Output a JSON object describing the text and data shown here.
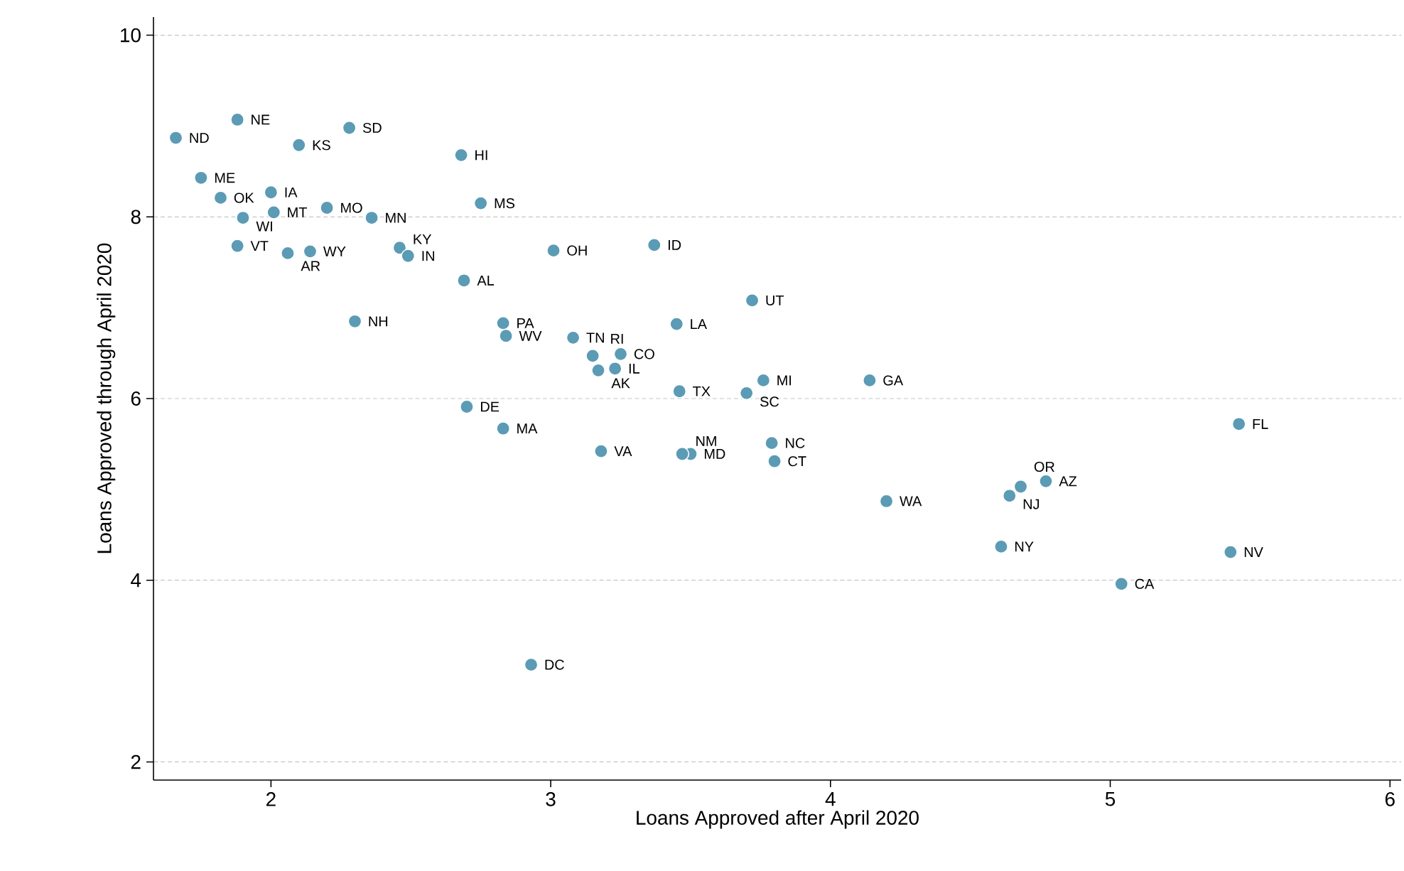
{
  "chart_data": {
    "type": "scatter",
    "xlabel": "Loans Approved after April 2020",
    "ylabel": "Loans Approved through April 2020",
    "xlim": [
      1.58,
      6.04
    ],
    "ylim": [
      1.8,
      10.2
    ],
    "xticks": [
      2,
      3,
      4,
      5,
      6
    ],
    "yticks": [
      2,
      4,
      6,
      8,
      10
    ],
    "grid": "y",
    "marker": "circle",
    "series": [
      {
        "color": "#5b9bb5",
        "x": [
          1.66,
          1.88,
          2.1,
          2.28,
          2.68,
          1.75,
          1.82,
          2.0,
          2.01,
          1.9,
          2.2,
          2.36,
          2.75,
          1.88,
          2.06,
          2.14,
          2.46,
          2.49,
          3.01,
          3.37,
          2.69,
          3.72,
          2.3,
          2.83,
          2.84,
          3.45,
          3.08,
          3.15,
          3.25,
          3.17,
          3.23,
          3.46,
          3.76,
          3.7,
          4.14,
          2.7,
          2.83,
          3.18,
          3.5,
          3.47,
          3.79,
          3.8,
          4.2,
          4.64,
          4.68,
          4.77,
          5.46,
          4.61,
          5.43,
          5.04,
          2.93
        ],
        "values": [
          8.87,
          9.07,
          8.79,
          8.98,
          8.68,
          8.43,
          8.21,
          8.27,
          8.05,
          7.99,
          8.1,
          7.99,
          8.15,
          7.68,
          7.6,
          7.62,
          7.66,
          7.57,
          7.63,
          7.69,
          7.3,
          7.08,
          6.85,
          6.83,
          6.69,
          6.82,
          6.67,
          6.47,
          6.49,
          6.31,
          6.33,
          6.08,
          6.2,
          6.06,
          6.2,
          5.91,
          5.67,
          5.42,
          5.39,
          5.39,
          5.51,
          5.31,
          4.87,
          4.93,
          5.03,
          5.09,
          5.72,
          4.37,
          4.31,
          3.96,
          3.07
        ]
      }
    ],
    "annotations": [
      {
        "text": "ND",
        "x": 1.66,
        "y": 8.87
      },
      {
        "text": "NE",
        "x": 1.88,
        "y": 9.07
      },
      {
        "text": "KS",
        "x": 2.1,
        "y": 8.79
      },
      {
        "text": "SD",
        "x": 2.28,
        "y": 8.98
      },
      {
        "text": "HI",
        "x": 2.68,
        "y": 8.68
      },
      {
        "text": "ME",
        "x": 1.75,
        "y": 8.43
      },
      {
        "text": "OK",
        "x": 1.82,
        "y": 8.21
      },
      {
        "text": "IA",
        "x": 2.0,
        "y": 8.27
      },
      {
        "text": "MT",
        "x": 2.01,
        "y": 8.05
      },
      {
        "text": "WI",
        "x": 1.9,
        "y": 7.99
      },
      {
        "text": "MO",
        "x": 2.2,
        "y": 8.1
      },
      {
        "text": "MN",
        "x": 2.36,
        "y": 7.99
      },
      {
        "text": "MS",
        "x": 2.75,
        "y": 8.15
      },
      {
        "text": "VT",
        "x": 1.88,
        "y": 7.68
      },
      {
        "text": "AR",
        "x": 2.06,
        "y": 7.6
      },
      {
        "text": "WY",
        "x": 2.14,
        "y": 7.62
      },
      {
        "text": "KY",
        "x": 2.46,
        "y": 7.66
      },
      {
        "text": "IN",
        "x": 2.49,
        "y": 7.57
      },
      {
        "text": "OH",
        "x": 3.01,
        "y": 7.63
      },
      {
        "text": "ID",
        "x": 3.37,
        "y": 7.69
      },
      {
        "text": "AL",
        "x": 2.69,
        "y": 7.3
      },
      {
        "text": "UT",
        "x": 3.72,
        "y": 7.08
      },
      {
        "text": "NH",
        "x": 2.3,
        "y": 6.85
      },
      {
        "text": "PA",
        "x": 2.83,
        "y": 6.83
      },
      {
        "text": "WV",
        "x": 2.84,
        "y": 6.69
      },
      {
        "text": "LA",
        "x": 3.45,
        "y": 6.82
      },
      {
        "text": "TN",
        "x": 3.08,
        "y": 6.67
      },
      {
        "text": "RI",
        "x": 3.15,
        "y": 6.47
      },
      {
        "text": "CO",
        "x": 3.25,
        "y": 6.49
      },
      {
        "text": "AK",
        "x": 3.17,
        "y": 6.31
      },
      {
        "text": "IL",
        "x": 3.23,
        "y": 6.33
      },
      {
        "text": "TX",
        "x": 3.46,
        "y": 6.08
      },
      {
        "text": "MI",
        "x": 3.76,
        "y": 6.2
      },
      {
        "text": "SC",
        "x": 3.7,
        "y": 6.06
      },
      {
        "text": "GA",
        "x": 4.14,
        "y": 6.2
      },
      {
        "text": "DE",
        "x": 2.7,
        "y": 5.91
      },
      {
        "text": "MA",
        "x": 2.83,
        "y": 5.67
      },
      {
        "text": "VA",
        "x": 3.18,
        "y": 5.42
      },
      {
        "text": "MD",
        "x": 3.5,
        "y": 5.39
      },
      {
        "text": "NM",
        "x": 3.47,
        "y": 5.39
      },
      {
        "text": "NC",
        "x": 3.79,
        "y": 5.51
      },
      {
        "text": "CT",
        "x": 3.8,
        "y": 5.31
      },
      {
        "text": "WA",
        "x": 4.2,
        "y": 4.87
      },
      {
        "text": "NJ",
        "x": 4.64,
        "y": 4.93
      },
      {
        "text": "OR",
        "x": 4.68,
        "y": 5.03
      },
      {
        "text": "AZ",
        "x": 4.77,
        "y": 5.09
      },
      {
        "text": "FL",
        "x": 5.46,
        "y": 5.72
      },
      {
        "text": "NY",
        "x": 4.61,
        "y": 4.37
      },
      {
        "text": "NV",
        "x": 5.43,
        "y": 4.31
      },
      {
        "text": "CA",
        "x": 5.04,
        "y": 3.96
      },
      {
        "text": "DC",
        "x": 2.93,
        "y": 3.07
      }
    ]
  }
}
